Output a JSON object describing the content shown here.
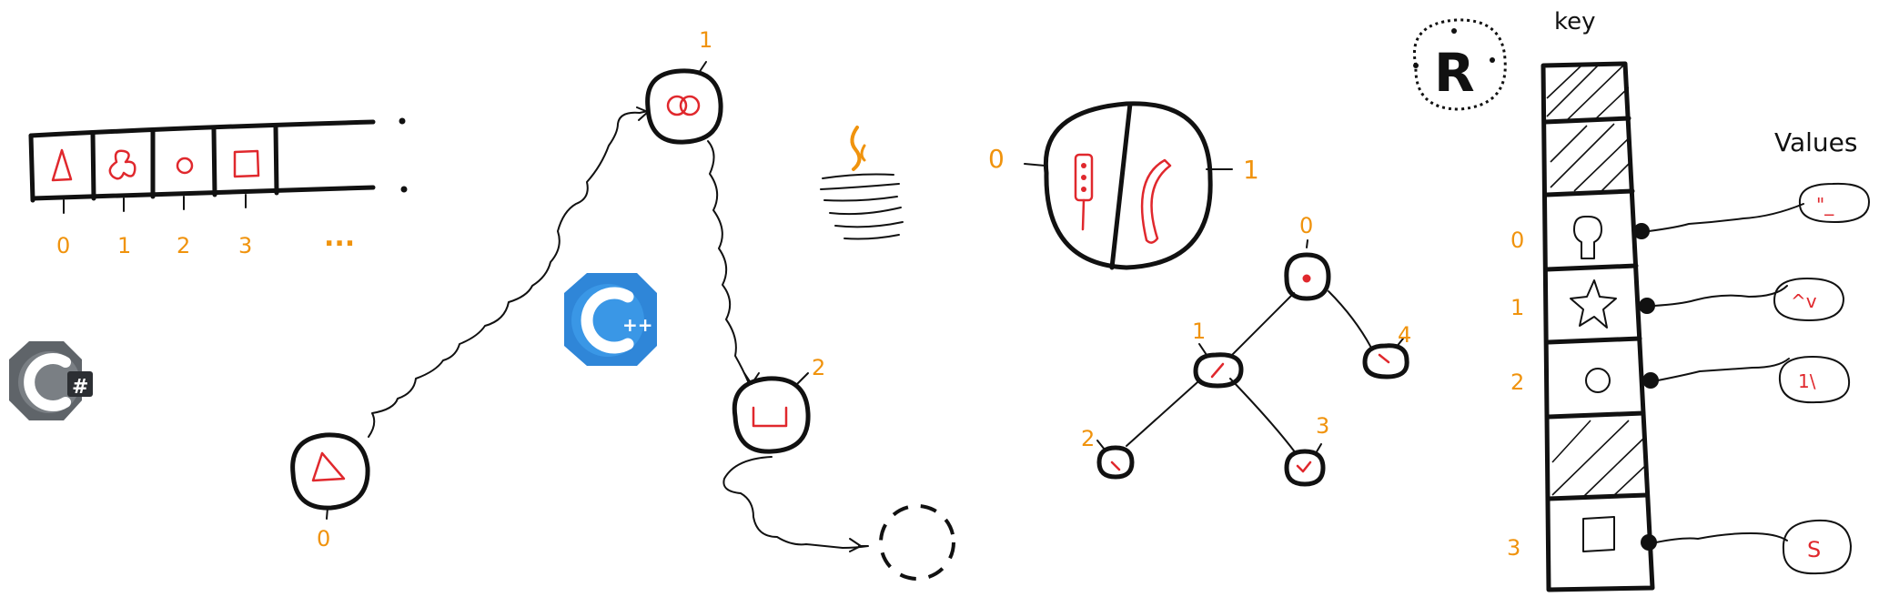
{
  "colors": {
    "ink": "#111111",
    "accent_label": "#f0930d",
    "glyph_red": "#e0282d",
    "cpp_blue": "#2f86d8",
    "csharp_gray": "#666b70",
    "java_orange": "#f0930d"
  },
  "logos": {
    "csharp": {
      "icon": "csharp-logo",
      "mark": "#"
    },
    "cpp": {
      "icon": "cpp-logo",
      "mark": "++"
    },
    "java": {
      "icon": "java-logo"
    },
    "r": {
      "icon": "r-logo",
      "mark": "R"
    }
  },
  "array": {
    "indices": [
      "0",
      "1",
      "2",
      "3",
      "..."
    ],
    "cells": [
      "triangle",
      "clover",
      "circle",
      "square",
      "empty"
    ]
  },
  "linked_list": {
    "nodes": [
      {
        "label": "0",
        "glyph": "triangle"
      },
      {
        "label": "1",
        "glyph": "rings"
      },
      {
        "label": "2",
        "glyph": "tray"
      }
    ]
  },
  "pair": {
    "left_label": "0",
    "right_label": "1"
  },
  "tree": {
    "nodes": [
      "0",
      "1",
      "2",
      "3",
      "4"
    ]
  },
  "hashmap": {
    "key_title": "key",
    "values_title": "Values",
    "row_labels": [
      "0",
      "1",
      "2",
      "3"
    ],
    "value_glyphs": [
      "\"_",
      "^v",
      "1\\",
      "S"
    ]
  }
}
